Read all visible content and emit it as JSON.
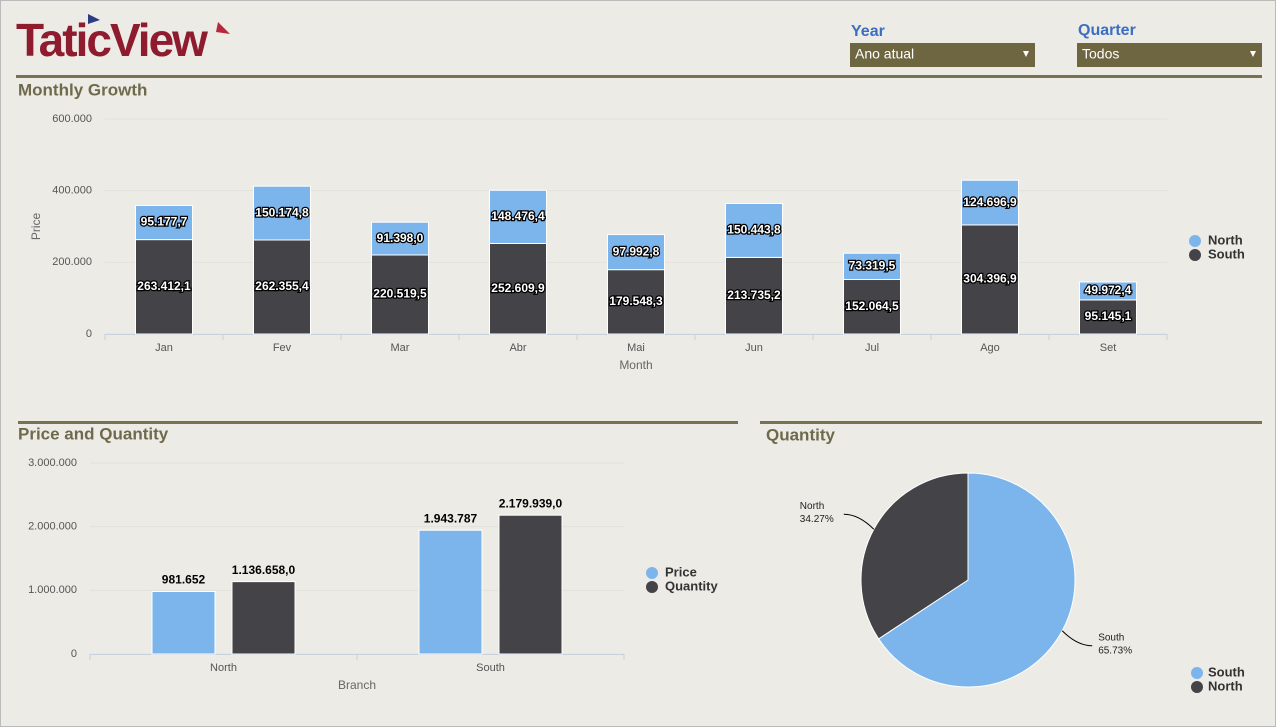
{
  "header": {
    "logo": "TaticView",
    "filters": [
      {
        "label": "Year",
        "value": "Ano atual"
      },
      {
        "label": "Quarter",
        "value": "Todos"
      }
    ]
  },
  "chart_data": [
    {
      "type": "bar",
      "stacked": true,
      "title": "Monthly Growth",
      "x_label": "Month",
      "y_label": "Price",
      "categories": [
        "Jan",
        "Fev",
        "Mar",
        "Abr",
        "Mai",
        "Jun",
        "Jul",
        "Ago",
        "Set"
      ],
      "series": [
        {
          "name": "North",
          "color": "#7cb5ec",
          "values": [
            95177.7,
            150174.8,
            91398.0,
            148476.4,
            97992.8,
            150443.8,
            73319.5,
            124696.9,
            49972.4
          ],
          "value_labels": [
            "95.177,7",
            "150.174,8",
            "91.398,0",
            "148.476,4",
            "97.992,8",
            "150.443,8",
            "73.319,5",
            "124.696,9",
            "49.972,4"
          ]
        },
        {
          "name": "South",
          "color": "#434348",
          "values": [
            263412.1,
            262355.4,
            220519.5,
            252609.9,
            179548.3,
            213735.2,
            152064.5,
            304396.9,
            95145.1
          ],
          "value_labels": [
            "263.412,1",
            "262.355,4",
            "220.519,5",
            "252.609,9",
            "179.548,3",
            "213.735,2",
            "152.064,5",
            "304.396,9",
            "95.145,1"
          ]
        }
      ],
      "ylim": [
        0,
        600000
      ],
      "yticks": [
        0,
        {
          "value": 200000,
          "label": "200.000"
        },
        {
          "value": 400000,
          "label": "400.000"
        },
        {
          "value": 600000,
          "label": "600.000"
        }
      ],
      "grid": true,
      "legend": "right"
    },
    {
      "type": "bar",
      "stacked": false,
      "title": "Price and Quantity",
      "x_label": "Branch",
      "categories": [
        "North",
        "South"
      ],
      "series": [
        {
          "name": "Price",
          "color": "#7cb5ec",
          "values": [
            981652,
            1943787
          ],
          "value_labels": [
            "981.652",
            "1.943.787"
          ]
        },
        {
          "name": "Quantity",
          "color": "#434348",
          "values": [
            1136658.0,
            2179939.0
          ],
          "value_labels": [
            "1.136.658,0",
            "2.179.939,0"
          ]
        }
      ],
      "ylim": [
        0,
        3000000
      ],
      "yticks": [
        0,
        {
          "value": 1000000,
          "label": "1.000.000"
        },
        {
          "value": 2000000,
          "label": "2.000.000"
        },
        {
          "value": 3000000,
          "label": "3.000.000"
        }
      ],
      "grid": true,
      "legend": "right"
    },
    {
      "type": "pie",
      "title": "Quantity",
      "categories": [
        "South",
        "North"
      ],
      "values": [
        65.73,
        34.27
      ],
      "value_labels": [
        "65.73%",
        "34.27%"
      ],
      "colors": [
        "#7cb5ec",
        "#434348"
      ],
      "legend": "bottom-right"
    }
  ]
}
